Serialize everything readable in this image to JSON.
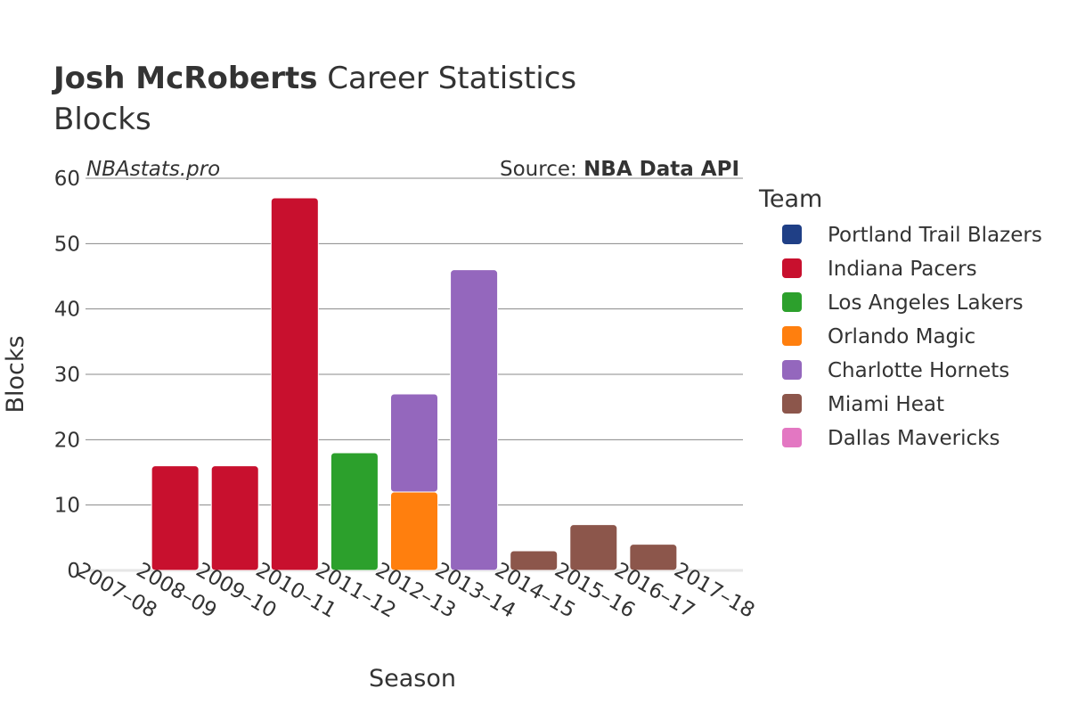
{
  "header": {
    "name": "Josh McRoberts",
    "title_rest": " Career Statistics",
    "subtitle": "Blocks",
    "watermark": "NBAstats.pro",
    "source_prefix": "Source: ",
    "source_name": "NBA Data API"
  },
  "legend": {
    "title": "Team",
    "items": [
      {
        "label": "Portland Trail Blazers",
        "color": "#1f3f86"
      },
      {
        "label": "Indiana Pacers",
        "color": "#c8102e"
      },
      {
        "label": "Los Angeles Lakers",
        "color": "#2ca02c"
      },
      {
        "label": "Orlando Magic",
        "color": "#ff7f0e"
      },
      {
        "label": "Charlotte Hornets",
        "color": "#9467bd"
      },
      {
        "label": "Miami Heat",
        "color": "#8c564b"
      },
      {
        "label": "Dallas Mavericks",
        "color": "#e377c2"
      }
    ]
  },
  "chart_data": {
    "type": "bar",
    "stacked": true,
    "title": "Josh McRoberts Career Statistics",
    "subtitle": "Blocks",
    "xlabel": "Season",
    "ylabel": "Blocks",
    "ylim": [
      0,
      60
    ],
    "yticks": [
      0,
      10,
      20,
      30,
      40,
      50,
      60
    ],
    "grid": true,
    "legend_position": "right",
    "categories": [
      "2007–08",
      "2008–09",
      "2009–10",
      "2010–11",
      "2011–12",
      "2012–13",
      "2013–14",
      "2014–15",
      "2015–16",
      "2016–17",
      "2017–18"
    ],
    "series": [
      {
        "name": "Portland Trail Blazers",
        "color": "#1f3f86",
        "values": [
          0,
          0,
          0,
          0,
          0,
          0,
          0,
          0,
          0,
          0,
          0
        ]
      },
      {
        "name": "Indiana Pacers",
        "color": "#c8102e",
        "values": [
          0,
          16,
          16,
          57,
          0,
          0,
          0,
          0,
          0,
          0,
          0
        ]
      },
      {
        "name": "Los Angeles Lakers",
        "color": "#2ca02c",
        "values": [
          0,
          0,
          0,
          0,
          18,
          0,
          0,
          0,
          0,
          0,
          0
        ]
      },
      {
        "name": "Orlando Magic",
        "color": "#ff7f0e",
        "values": [
          0,
          0,
          0,
          0,
          0,
          12,
          0,
          0,
          0,
          0,
          0
        ]
      },
      {
        "name": "Charlotte Hornets",
        "color": "#9467bd",
        "values": [
          0,
          0,
          0,
          0,
          0,
          15,
          46,
          0,
          0,
          0,
          0
        ]
      },
      {
        "name": "Miami Heat",
        "color": "#8c564b",
        "values": [
          0,
          0,
          0,
          0,
          0,
          0,
          0,
          3,
          7,
          4,
          0
        ]
      },
      {
        "name": "Dallas Mavericks",
        "color": "#e377c2",
        "values": [
          0,
          0,
          0,
          0,
          0,
          0,
          0,
          0,
          0,
          0,
          0
        ]
      }
    ]
  }
}
